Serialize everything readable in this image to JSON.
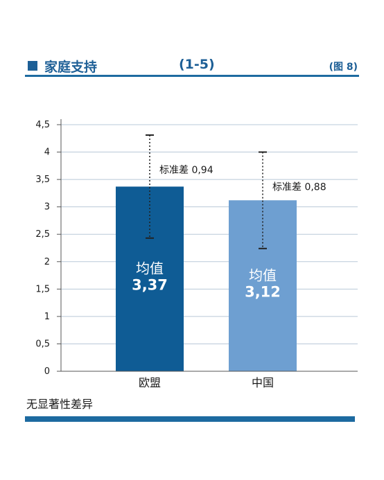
{
  "header": {
    "title": "家庭支持",
    "scale": "(1-5)",
    "figure_ref": "(图 8)"
  },
  "footnote": "无显著性差异",
  "colors": {
    "accent": "#1d5f96",
    "bar_eu": "#0f5c95",
    "bar_cn": "#6e9fd1",
    "grid": "#b9c8d8"
  },
  "chart_data": {
    "type": "bar",
    "categories": [
      "欧盟",
      "中国"
    ],
    "values": [
      3.37,
      3.12
    ],
    "std_dev": [
      0.94,
      0.88
    ],
    "error_bar_labels": [
      "标准差 0,94",
      "标准差 0,88"
    ],
    "bar_label_prefix": "均值",
    "bar_value_labels": [
      "3,37",
      "3,12"
    ],
    "ylim": [
      0,
      4.5
    ],
    "y_ticks": [
      0,
      0.5,
      1,
      1.5,
      2,
      2.5,
      3,
      3.5,
      4,
      4.5
    ],
    "y_tick_labels": [
      "0",
      "0,5",
      "1",
      "1,5",
      "2",
      "2,5",
      "3",
      "3,5",
      "4",
      "4,5"
    ],
    "title": "",
    "xlabel": "",
    "ylabel": "",
    "grid": true,
    "legend": "none"
  }
}
